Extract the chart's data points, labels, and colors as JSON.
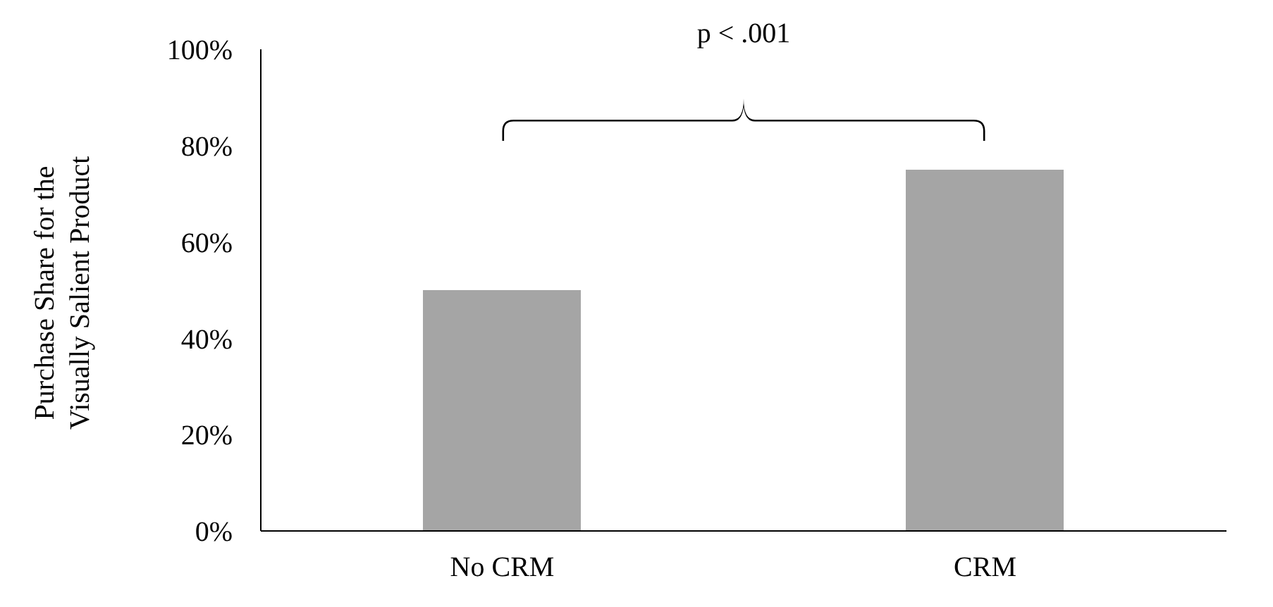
{
  "chart_data": {
    "type": "bar",
    "ylabel": "Purchase Share for the\nVisually Salient Product",
    "categories": [
      "No CRM",
      "CRM"
    ],
    "values": [
      50,
      75
    ],
    "color": "#a5a5a5",
    "ylim": [
      0,
      100
    ],
    "yticks": [
      {
        "value": 0,
        "label": "0%"
      },
      {
        "value": 20,
        "label": "20%"
      },
      {
        "value": 40,
        "label": "40%"
      },
      {
        "value": 60,
        "label": "60%"
      },
      {
        "value": 80,
        "label": "80%"
      },
      {
        "value": 100,
        "label": "100%"
      }
    ],
    "grid": false,
    "annotations": [
      "p < .001"
    ]
  }
}
